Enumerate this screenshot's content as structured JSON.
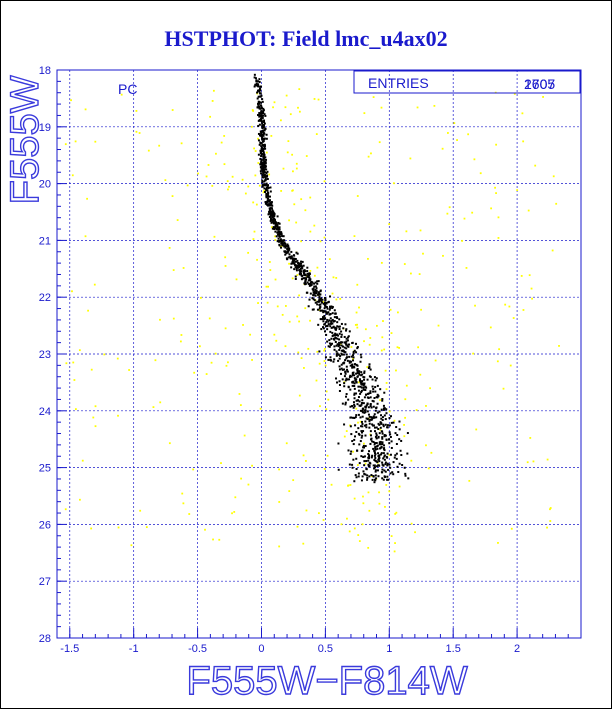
{
  "chart_data": {
    "type": "scatter",
    "title": "HSTPHOT: Field lmc_u4ax02",
    "xlabel": "F555W−F814W",
    "ylabel": "F555W",
    "xlim": [
      -1.6,
      2.5
    ],
    "ylim": [
      28,
      18
    ],
    "y_inverted": true,
    "x_ticks": [
      -1.5,
      -1,
      -0.5,
      0,
      0.5,
      1,
      1.5,
      2
    ],
    "x_tick_labels": [
      "-1.5",
      "-1",
      "-0.5",
      "0",
      "0.5",
      "1",
      "1.5",
      "2"
    ],
    "y_ticks": [
      18,
      19,
      20,
      21,
      22,
      23,
      24,
      25,
      26,
      27,
      28
    ],
    "y_tick_labels": [
      "18",
      "19",
      "20",
      "21",
      "22",
      "23",
      "24",
      "25",
      "26",
      "27",
      "28"
    ],
    "grid": "dashed",
    "panel_label": "PC",
    "stats_box": {
      "label": "ENTRIES",
      "value_overlap": [
        "2707",
        "1605"
      ]
    },
    "series": [
      {
        "color": "#000000",
        "description_key": "main sequence / turnoff stars (dense)",
        "sequence": [
          [
            -0.05,
            18.0
          ],
          [
            -0.02,
            18.5
          ],
          [
            0.0,
            19.0
          ],
          [
            0.0,
            19.5
          ],
          [
            0.02,
            20.0
          ],
          [
            0.07,
            20.5
          ],
          [
            0.15,
            21.0
          ],
          [
            0.3,
            21.5
          ],
          [
            0.45,
            22.0
          ],
          [
            0.55,
            22.5
          ],
          [
            0.65,
            23.0
          ],
          [
            0.75,
            23.5
          ],
          [
            0.85,
            24.0
          ],
          [
            0.9,
            24.5
          ],
          [
            0.9,
            25.0
          ]
        ]
      },
      {
        "color": "#ffff00",
        "description_key": "field stars (sparse)"
      }
    ]
  },
  "colors": {
    "frame_bg": "#ffffff",
    "axis": "#1a1acc",
    "grid": "#1a1acc",
    "main_points": "#000000",
    "field_points": "#ffff00"
  }
}
